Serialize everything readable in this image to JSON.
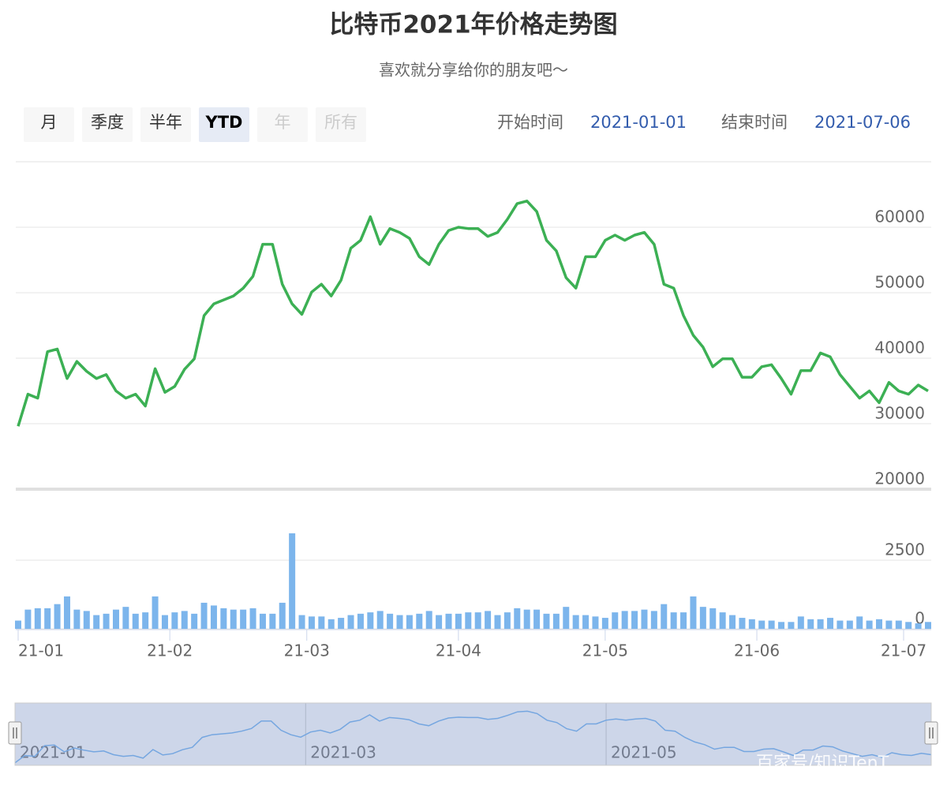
{
  "chart_data": {
    "type": "stock",
    "title": "比特币2021年价格走势图",
    "subtitle": "喜欢就分享给你的朋友吧～",
    "range_selector": {
      "buttons": [
        "月",
        "季度",
        "半年",
        "YTD",
        "年",
        "所有"
      ],
      "selected": 3,
      "disabled": [
        4,
        5
      ]
    },
    "inputs": {
      "start_label": "开始时间",
      "start": "2021-01-01",
      "end_label": "结束时间",
      "end": "2021-07-06"
    },
    "x": [
      "2021-01-01",
      "2021-01-03",
      "2021-01-05",
      "2021-01-07",
      "2021-01-09",
      "2021-01-11",
      "2021-01-13",
      "2021-01-15",
      "2021-01-17",
      "2021-01-19",
      "2021-01-21",
      "2021-01-23",
      "2021-01-25",
      "2021-01-27",
      "2021-01-29",
      "2021-01-31",
      "2021-02-02",
      "2021-02-04",
      "2021-02-06",
      "2021-02-08",
      "2021-02-10",
      "2021-02-12",
      "2021-02-14",
      "2021-02-16",
      "2021-02-18",
      "2021-02-20",
      "2021-02-22",
      "2021-02-24",
      "2021-02-26",
      "2021-02-28",
      "2021-03-02",
      "2021-03-04",
      "2021-03-06",
      "2021-03-08",
      "2021-03-10",
      "2021-03-12",
      "2021-03-14",
      "2021-03-16",
      "2021-03-18",
      "2021-03-20",
      "2021-03-22",
      "2021-03-24",
      "2021-03-26",
      "2021-03-28",
      "2021-03-30",
      "2021-04-01",
      "2021-04-03",
      "2021-04-05",
      "2021-04-07",
      "2021-04-09",
      "2021-04-11",
      "2021-04-13",
      "2021-04-15",
      "2021-04-17",
      "2021-04-19",
      "2021-04-21",
      "2021-04-23",
      "2021-04-25",
      "2021-04-27",
      "2021-04-29",
      "2021-05-01",
      "2021-05-03",
      "2021-05-05",
      "2021-05-07",
      "2021-05-09",
      "2021-05-11",
      "2021-05-13",
      "2021-05-15",
      "2021-05-17",
      "2021-05-19",
      "2021-05-21",
      "2021-05-23",
      "2021-05-25",
      "2021-05-27",
      "2021-05-29",
      "2021-05-31",
      "2021-06-02",
      "2021-06-04",
      "2021-06-06",
      "2021-06-08",
      "2021-06-10",
      "2021-06-12",
      "2021-06-14",
      "2021-06-16",
      "2021-06-18",
      "2021-06-20",
      "2021-06-22",
      "2021-06-24",
      "2021-06-26",
      "2021-06-28",
      "2021-06-30",
      "2021-07-02",
      "2021-07-04",
      "2021-07-06"
    ],
    "xlim": [
      "2021-01-01",
      "2021-07-06"
    ],
    "xticks": [
      {
        "value": "2021-01-01",
        "label": "21-01"
      },
      {
        "value": "2021-02-01",
        "label": "21-02"
      },
      {
        "value": "2021-03-01",
        "label": "21-03"
      },
      {
        "value": "2021-04-01",
        "label": "21-04"
      },
      {
        "value": "2021-05-01",
        "label": "21-05"
      },
      {
        "value": "2021-06-01",
        "label": "21-06"
      },
      {
        "value": "2021-07-01",
        "label": "21-07"
      }
    ],
    "series": [
      {
        "color": "#3cb054",
        "values": [
          29600,
          34500,
          33900,
          41000,
          41400,
          36900,
          39500,
          38000,
          36900,
          37500,
          35000,
          33900,
          34500,
          32700,
          38400,
          34800,
          35700,
          38300,
          39900,
          46500,
          48300,
          48900,
          49500,
          50700,
          52500,
          57400,
          57400,
          51300,
          48300,
          46700,
          50100,
          51300,
          49500,
          51900,
          56800,
          58000,
          61600,
          57400,
          59800,
          59200,
          58300,
          55500,
          54300,
          57400,
          59500,
          60000,
          59800,
          59800,
          58600,
          59200,
          61200,
          63600,
          64000,
          62400,
          58000,
          56400,
          52300,
          50700,
          55500,
          55500,
          58000,
          58800,
          58000,
          58800,
          59200,
          57400,
          51300,
          50700,
          46500,
          43500,
          41700,
          38700,
          39900,
          39900,
          37100,
          37100,
          38700,
          39000,
          36900,
          34500,
          38100,
          38100,
          40800,
          40200,
          37500,
          35700,
          33900,
          35000,
          33200,
          36300,
          35000,
          34500,
          35900,
          35000
        ]
      },
      {
        "type": "column",
        "axis": "y2",
        "color": "#7cb5ec",
        "values": [
          300,
          700,
          750,
          750,
          900,
          1180,
          700,
          650,
          500,
          550,
          700,
          800,
          550,
          600,
          1180,
          500,
          600,
          650,
          550,
          950,
          850,
          750,
          700,
          700,
          750,
          550,
          550,
          950,
          3480,
          500,
          450,
          450,
          350,
          400,
          500,
          550,
          600,
          650,
          550,
          500,
          500,
          550,
          650,
          500,
          550,
          550,
          600,
          600,
          650,
          500,
          600,
          750,
          700,
          700,
          550,
          550,
          800,
          500,
          500,
          450,
          400,
          600,
          650,
          650,
          700,
          650,
          900,
          600,
          600,
          1180,
          800,
          750,
          600,
          500,
          400,
          350,
          300,
          300,
          250,
          250,
          450,
          350,
          350,
          400,
          300,
          300,
          450,
          300,
          350,
          300,
          300,
          250,
          200,
          250
        ]
      }
    ],
    "ylim": [
      20000,
      70000
    ],
    "yticks": [
      20000,
      30000,
      40000,
      50000,
      60000
    ],
    "y2lim": [
      0,
      5000
    ],
    "y2ticks": [
      0,
      2500
    ],
    "grid": true,
    "navigator": {
      "xticks": [
        {
          "value": "2021-01-01",
          "label": "2021-01"
        },
        {
          "value": "2021-03-01",
          "label": "2021-03"
        },
        {
          "value": "2021-05-01",
          "label": "2021-05"
        }
      ]
    }
  },
  "watermark": "百家号/知识TenT"
}
